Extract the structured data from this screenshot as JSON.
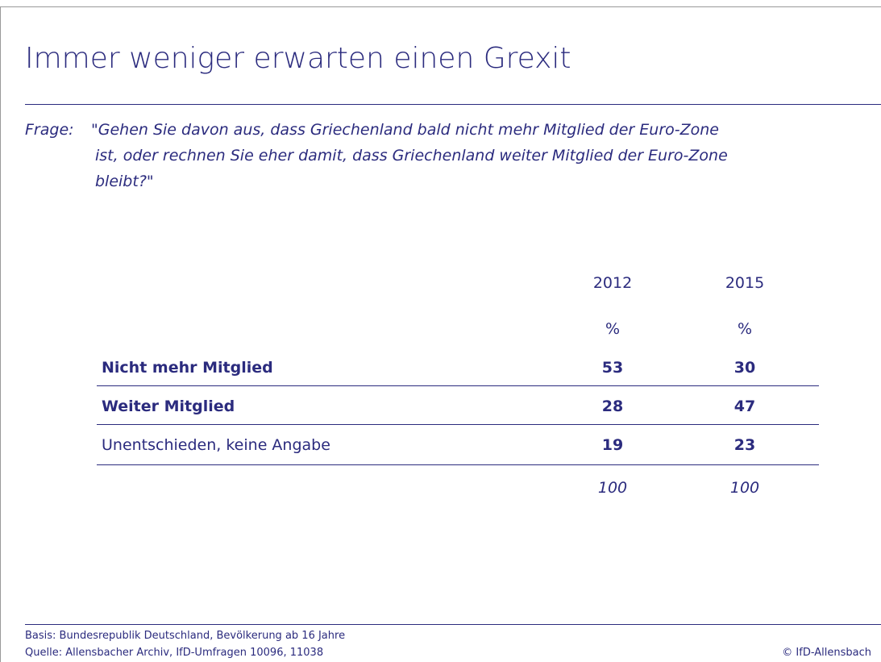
{
  "header": {
    "title": "Immer weniger erwarten einen Grexit"
  },
  "question": {
    "label": "Frage:",
    "lines": [
      "\"Gehen Sie davon aus, dass Griechenland bald nicht mehr Mitglied der Euro-Zone",
      "ist, oder rechnen Sie eher damit, dass Griechenland weiter Mitglied der Euro-Zone",
      "bleibt?\""
    ]
  },
  "table": {
    "columns": [
      "2012",
      "2015"
    ],
    "units": [
      "%",
      "%"
    ],
    "rows": [
      [
        "Nicht mehr Mitglied",
        "53",
        "30"
      ],
      [
        "Weiter Mitglied",
        "28",
        "47"
      ],
      [
        "Unentschieden, keine Angabe",
        "19",
        "23"
      ]
    ],
    "totals": [
      "100",
      "100"
    ]
  },
  "footer": {
    "basis": "Basis: Bundesrepublik Deutschland, Bevölkerung ab 16 Jahre",
    "source": "Quelle: Allensbacher Archiv, IfD-Umfragen 10096, 11038",
    "copyright": "© IfD-Allensbach"
  }
}
